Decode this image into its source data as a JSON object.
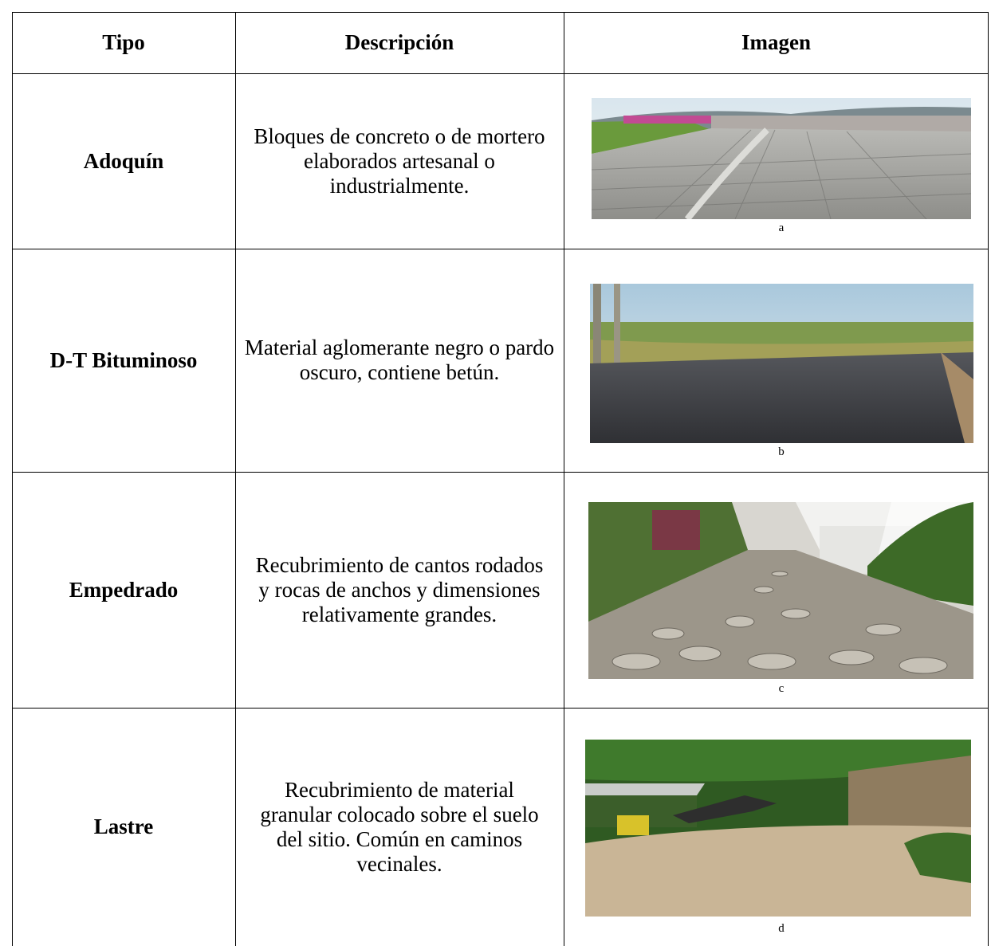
{
  "table": {
    "header": [
      "Tipo",
      "Descripción",
      "Imagen"
    ],
    "rows": [
      [
        "Adoquín",
        "Bloques de concreto o de mortero elaborados artesanal o industrialmente.",
        "a"
      ],
      [
        "D-T Bituminoso",
        "Material aglomerante negro o pardo oscuro, contiene betún.",
        "b"
      ],
      [
        "Empedrado",
        "Recubrimiento de cantos rodados y rocas de anchos y dimensiones relativamente grandes.",
        "c"
      ],
      [
        "Lastre",
        "Recubrimiento de material granular colocado sobre el suelo del sitio. Común en caminos vecinales.",
        "d"
      ]
    ]
  }
}
